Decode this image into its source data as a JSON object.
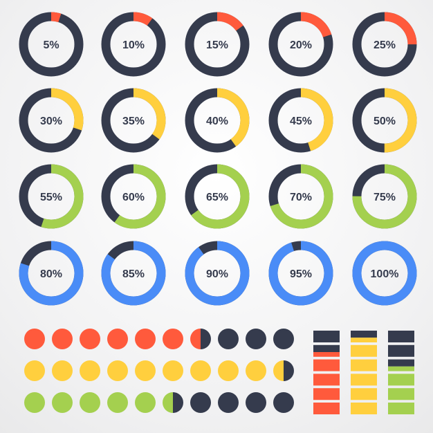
{
  "colors": {
    "dark": "#353b4d",
    "red": "#ff5a3c",
    "yellow": "#ffcf3e",
    "green": "#a4d04f",
    "blue": "#4a8cf7",
    "text": "#353b4d"
  },
  "donuts": [
    {
      "label": "5%",
      "value": 5,
      "color": "red"
    },
    {
      "label": "10%",
      "value": 10,
      "color": "red"
    },
    {
      "label": "15%",
      "value": 15,
      "color": "red"
    },
    {
      "label": "20%",
      "value": 20,
      "color": "red"
    },
    {
      "label": "25%",
      "value": 25,
      "color": "red"
    },
    {
      "label": "30%",
      "value": 30,
      "color": "yellow"
    },
    {
      "label": "35%",
      "value": 35,
      "color": "yellow"
    },
    {
      "label": "40%",
      "value": 40,
      "color": "yellow"
    },
    {
      "label": "45%",
      "value": 45,
      "color": "yellow"
    },
    {
      "label": "50%",
      "value": 50,
      "color": "yellow"
    },
    {
      "label": "55%",
      "value": 55,
      "color": "green"
    },
    {
      "label": "60%",
      "value": 60,
      "color": "green"
    },
    {
      "label": "65%",
      "value": 65,
      "color": "green"
    },
    {
      "label": "70%",
      "value": 70,
      "color": "green"
    },
    {
      "label": "75%",
      "value": 75,
      "color": "green"
    },
    {
      "label": "80%",
      "value": 80,
      "color": "blue"
    },
    {
      "label": "85%",
      "value": 85,
      "color": "blue"
    },
    {
      "label": "90%",
      "value": 90,
      "color": "blue"
    },
    {
      "label": "95%",
      "value": 95,
      "color": "blue"
    },
    {
      "label": "100%",
      "value": 100,
      "color": "blue"
    }
  ],
  "dot_rows": [
    {
      "color": "red",
      "total": 10,
      "filled": 6.5
    },
    {
      "color": "yellow",
      "total": 10,
      "filled": 9.5
    },
    {
      "color": "green",
      "total": 10,
      "filled": 5.5
    }
  ],
  "bar_stacks": [
    {
      "color": "red",
      "total_segments": 6,
      "filled_segments": 4,
      "partial_fill": 0.4
    },
    {
      "color": "yellow",
      "total_segments": 6,
      "filled_segments": 5,
      "partial_fill": 0.4
    },
    {
      "color": "green",
      "total_segments": 6,
      "filled_segments": 3,
      "partial_fill": 0.4
    }
  ]
}
